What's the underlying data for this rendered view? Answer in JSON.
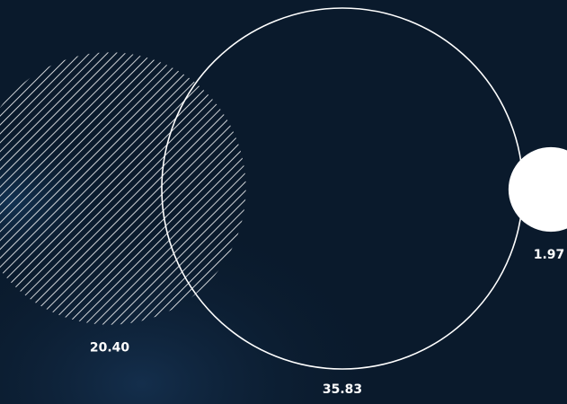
{
  "chart_data": {
    "type": "bubble",
    "title": "",
    "xlabel": "",
    "ylabel": "",
    "grid": false,
    "legend": "none",
    "series": [
      {
        "points": [
          {
            "label": "20.40",
            "value": 20.4,
            "style": "hatched"
          },
          {
            "label": "35.83",
            "value": 35.83,
            "style": "outline"
          },
          {
            "label": "1.97",
            "value": 1.97,
            "style": "filled"
          }
        ]
      }
    ]
  },
  "colors": {
    "background": "#0a1a2c",
    "foreground": "#ffffff"
  }
}
